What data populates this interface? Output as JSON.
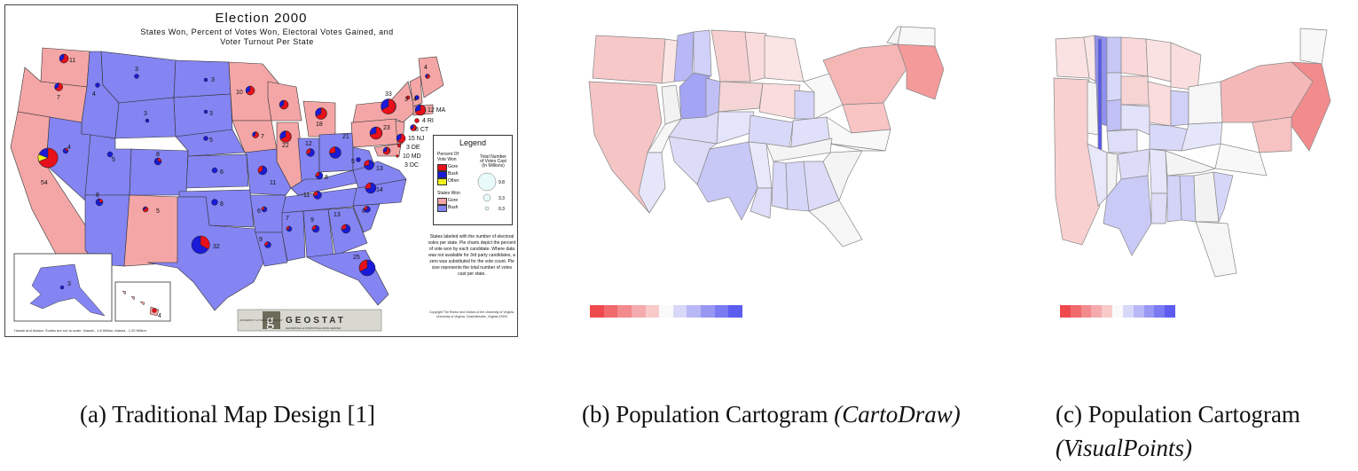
{
  "panel_a": {
    "title": "Election 2000",
    "subtitle_lines": [
      "States Won, Percent of Votes Won, Electoral Votes Gained, and",
      "Voter Turnout Per State"
    ],
    "legend": {
      "title": "Legend",
      "percent_heading": "Percent Of Vote Won",
      "percent_items": [
        {
          "label": "Gore",
          "color": "#e8101a"
        },
        {
          "label": "Bush",
          "color": "#1a1ad8"
        },
        {
          "label": "Other",
          "color": "#f0f020"
        }
      ],
      "states_heading": "States Won",
      "state_items": [
        {
          "label": "Gore",
          "color": "#f4a6a6"
        },
        {
          "label": "Bush",
          "color": "#8484f2"
        }
      ],
      "total_heading": "Total Number of Votes Cast (In Millions)",
      "total_items": [
        "9.8",
        "3.3",
        "0.3"
      ]
    },
    "note": "States labeled with the number of electoral votes per state. Pie charts depict the percent of vote won by each candidate. Where data was not available for 3rd party candidates, a zero was substituted for the vote count. Pie size represents the total number of votes cast per state.",
    "copyright": "Copyright The Rector and Visitors of the University of Virginia. University of Virginia, Charlottesville, Virginia 22903",
    "footnote": "Hawaii and Alaska: Scales are not to scale. Hawaii - 1:8 Million; Alaska - 1:20 Million",
    "logo_text": "GEOSTAT",
    "logo_sub": "GEOSPATIAL & STATISTICAL DATA CENTER",
    "logo_left": "UNIVERSITY of VIRGINIA LIBRARY",
    "electoral_labels": [
      {
        "text": "11"
      },
      {
        "text": "7"
      },
      {
        "text": "54"
      },
      {
        "text": "4"
      },
      {
        "text": "3"
      },
      {
        "text": "4"
      },
      {
        "text": "5"
      },
      {
        "text": "3"
      },
      {
        "text": "8"
      },
      {
        "text": "5"
      },
      {
        "text": "8"
      },
      {
        "text": "3"
      },
      {
        "text": "3"
      },
      {
        "text": "5"
      },
      {
        "text": "6"
      },
      {
        "text": "8"
      },
      {
        "text": "32"
      },
      {
        "text": "10"
      },
      {
        "text": "7"
      },
      {
        "text": "7"
      },
      {
        "text": "6"
      },
      {
        "text": "9"
      },
      {
        "text": "11"
      },
      {
        "text": "22"
      },
      {
        "text": "18"
      },
      {
        "text": "12"
      },
      {
        "text": "21"
      },
      {
        "text": "8"
      },
      {
        "text": "11"
      },
      {
        "text": "9"
      },
      {
        "text": "13"
      },
      {
        "text": "25"
      },
      {
        "text": "8"
      },
      {
        "text": "14"
      },
      {
        "text": "13"
      },
      {
        "text": "23"
      },
      {
        "text": "33"
      },
      {
        "text": "5"
      },
      {
        "text": "3"
      },
      {
        "text": "4"
      },
      {
        "text": "4"
      },
      {
        "text": "12 MA"
      },
      {
        "text": "4 RI"
      },
      {
        "text": "8 CT"
      },
      {
        "text": "15 NJ"
      },
      {
        "text": "3 DE"
      },
      {
        "text": "10 MD"
      },
      {
        "text": "3 DC"
      },
      {
        "text": "3"
      },
      {
        "text": "4"
      }
    ]
  },
  "panel_b": {
    "colorbar": [
      "#ee4a4e",
      "#f06a6e",
      "#f38a8e",
      "#f5aaae",
      "#f8caca",
      "#fafafa",
      "#d8d8f8",
      "#b8b8f6",
      "#9898f4",
      "#7a7af2",
      "#5c5cf0"
    ]
  },
  "panel_c": {
    "colorbar": [
      "#ee4a4e",
      "#f06a6e",
      "#f38a8e",
      "#f5aaae",
      "#f8caca",
      "#fafafa",
      "#d8d8f8",
      "#b8b8f6",
      "#9898f4",
      "#7a7af2",
      "#5c5cf0"
    ]
  },
  "captions": {
    "a": "(a) Traditional Map Design [1]",
    "b_plain": "(b) Population Cartogram ",
    "b_italic": "(CartoDraw)",
    "c_plain": "(c) Population Cartogram ",
    "c_italic": "(VisualPoints)"
  }
}
